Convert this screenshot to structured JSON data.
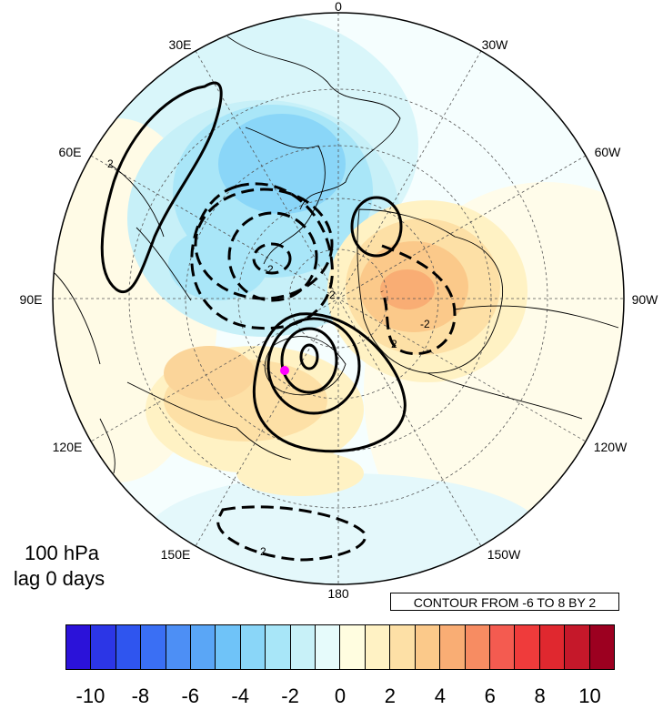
{
  "map": {
    "projection": "north polar stereographic",
    "longitude_labels": {
      "top": "0",
      "top_right_1": "30W",
      "top_right_2": "60W",
      "right": "90W",
      "bottom_right_1": "120W",
      "bottom_right_2": "150W",
      "bottom": "180",
      "bottom_left_2": "150E",
      "bottom_left_1": "120E",
      "left": "90E",
      "top_left_2": "60E",
      "top_left_1": "30E"
    },
    "contour_labels": [
      "2",
      "2",
      "2",
      "2",
      "-2",
      "-2"
    ],
    "marker_color": "#ff00ff",
    "shading": {
      "negative_anomaly_region": "Europe / western Siberia",
      "positive_anomaly_region": "Greenland / northern North America",
      "secondary_positive_region": "East Asia / Pacific"
    }
  },
  "panel": {
    "level": "100 hPa",
    "lag": "lag 0 days"
  },
  "contour_note": "CONTOUR FROM -6 TO 8 BY 2",
  "colorbar": {
    "colors": [
      "#2b12d9",
      "#2c36e6",
      "#2f55ef",
      "#3a6ff4",
      "#4d8ff5",
      "#5aa6f6",
      "#6fc3f8",
      "#8ad6f8",
      "#a8e6f8",
      "#c8f1f8",
      "#e6fbfb",
      "#fffde0",
      "#fff2c4",
      "#fde0a6",
      "#fbc98a",
      "#f9ad74",
      "#f78c62",
      "#f45b50",
      "#ef3b3b",
      "#e0282f",
      "#c5182a",
      "#9c0020"
    ],
    "tick_labels": [
      "-10",
      "-8",
      "-6",
      "-4",
      "-2",
      "0",
      "2",
      "4",
      "6",
      "8",
      "10"
    ]
  }
}
